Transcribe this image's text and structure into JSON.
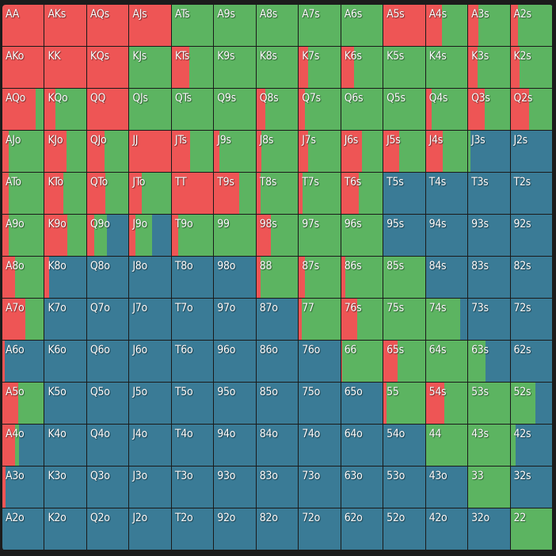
{
  "colors": {
    "raise": "#ee5555",
    "call": "#5cb461",
    "fold": "#3a7b96"
  },
  "grid": {
    "rows": [
      [
        {
          "hand": "AA",
          "raise": 100,
          "call": 0,
          "fold": 0
        },
        {
          "hand": "AKs",
          "raise": 100,
          "call": 0,
          "fold": 0
        },
        {
          "hand": "AQs",
          "raise": 100,
          "call": 0,
          "fold": 0
        },
        {
          "hand": "AJs",
          "raise": 100,
          "call": 0,
          "fold": 0
        },
        {
          "hand": "ATs",
          "raise": 0,
          "call": 100,
          "fold": 0
        },
        {
          "hand": "A9s",
          "raise": 0,
          "call": 100,
          "fold": 0
        },
        {
          "hand": "A8s",
          "raise": 0,
          "call": 100,
          "fold": 0
        },
        {
          "hand": "A7s",
          "raise": 0,
          "call": 100,
          "fold": 0
        },
        {
          "hand": "A6s",
          "raise": 0,
          "call": 100,
          "fold": 0
        },
        {
          "hand": "A5s",
          "raise": 100,
          "call": 0,
          "fold": 0
        },
        {
          "hand": "A4s",
          "raise": 38,
          "call": 62,
          "fold": 0
        },
        {
          "hand": "A3s",
          "raise": 25,
          "call": 75,
          "fold": 0
        },
        {
          "hand": "A2s",
          "raise": 18,
          "call": 82,
          "fold": 0
        }
      ],
      [
        {
          "hand": "AKo",
          "raise": 100,
          "call": 0,
          "fold": 0
        },
        {
          "hand": "KK",
          "raise": 100,
          "call": 0,
          "fold": 0
        },
        {
          "hand": "KQs",
          "raise": 100,
          "call": 0,
          "fold": 0
        },
        {
          "hand": "KJs",
          "raise": 0,
          "call": 100,
          "fold": 0
        },
        {
          "hand": "KTs",
          "raise": 42,
          "call": 58,
          "fold": 0
        },
        {
          "hand": "K9s",
          "raise": 0,
          "call": 100,
          "fold": 0
        },
        {
          "hand": "K8s",
          "raise": 0,
          "call": 100,
          "fold": 0
        },
        {
          "hand": "K7s",
          "raise": 22,
          "call": 78,
          "fold": 0
        },
        {
          "hand": "K6s",
          "raise": 32,
          "call": 68,
          "fold": 0
        },
        {
          "hand": "K5s",
          "raise": 0,
          "call": 100,
          "fold": 0
        },
        {
          "hand": "K4s",
          "raise": 0,
          "call": 100,
          "fold": 0
        },
        {
          "hand": "K3s",
          "raise": 22,
          "call": 78,
          "fold": 0
        },
        {
          "hand": "K2s",
          "raise": 22,
          "call": 78,
          "fold": 0
        }
      ],
      [
        {
          "hand": "AQo",
          "raise": 80,
          "call": 20,
          "fold": 0
        },
        {
          "hand": "KQo",
          "raise": 25,
          "call": 75,
          "fold": 0
        },
        {
          "hand": "QQ",
          "raise": 100,
          "call": 0,
          "fold": 0
        },
        {
          "hand": "QJs",
          "raise": 0,
          "call": 100,
          "fold": 0
        },
        {
          "hand": "QTs",
          "raise": 0,
          "call": 100,
          "fold": 0
        },
        {
          "hand": "Q9s",
          "raise": 0,
          "call": 100,
          "fold": 0
        },
        {
          "hand": "Q8s",
          "raise": 22,
          "call": 78,
          "fold": 0
        },
        {
          "hand": "Q7s",
          "raise": 15,
          "call": 85,
          "fold": 0
        },
        {
          "hand": "Q6s",
          "raise": 0,
          "call": 100,
          "fold": 0
        },
        {
          "hand": "Q5s",
          "raise": 0,
          "call": 100,
          "fold": 0
        },
        {
          "hand": "Q4s",
          "raise": 15,
          "call": 85,
          "fold": 0
        },
        {
          "hand": "Q3s",
          "raise": 40,
          "call": 60,
          "fold": 0
        },
        {
          "hand": "Q2s",
          "raise": 45,
          "call": 55,
          "fold": 0
        }
      ],
      [
        {
          "hand": "AJo",
          "raise": 15,
          "call": 85,
          "fold": 0
        },
        {
          "hand": "KJo",
          "raise": 52,
          "call": 48,
          "fold": 0
        },
        {
          "hand": "QJo",
          "raise": 42,
          "call": 58,
          "fold": 0
        },
        {
          "hand": "JJ",
          "raise": 100,
          "call": 0,
          "fold": 0
        },
        {
          "hand": "JTs",
          "raise": 44,
          "call": 56,
          "fold": 0
        },
        {
          "hand": "J9s",
          "raise": 12,
          "call": 88,
          "fold": 0
        },
        {
          "hand": "J8s",
          "raise": 12,
          "call": 88,
          "fold": 0
        },
        {
          "hand": "J7s",
          "raise": 22,
          "call": 78,
          "fold": 0
        },
        {
          "hand": "J6s",
          "raise": 50,
          "call": 50,
          "fold": 0
        },
        {
          "hand": "J5s",
          "raise": 38,
          "call": 62,
          "fold": 0
        },
        {
          "hand": "J4s",
          "raise": 40,
          "call": 60,
          "fold": 0
        },
        {
          "hand": "J3s",
          "raise": 0,
          "call": 5,
          "fold": 95
        },
        {
          "hand": "J2s",
          "raise": 0,
          "call": 0,
          "fold": 100
        }
      ],
      [
        {
          "hand": "ATo",
          "raise": 15,
          "call": 85,
          "fold": 0
        },
        {
          "hand": "KTo",
          "raise": 44,
          "call": 56,
          "fold": 0
        },
        {
          "hand": "QTo",
          "raise": 44,
          "call": 56,
          "fold": 0
        },
        {
          "hand": "JTo",
          "raise": 30,
          "call": 70,
          "fold": 0
        },
        {
          "hand": "TT",
          "raise": 100,
          "call": 0,
          "fold": 0
        },
        {
          "hand": "T9s",
          "raise": 60,
          "call": 40,
          "fold": 0
        },
        {
          "hand": "T8s",
          "raise": 10,
          "call": 90,
          "fold": 0
        },
        {
          "hand": "T7s",
          "raise": 10,
          "call": 90,
          "fold": 0
        },
        {
          "hand": "T6s",
          "raise": 42,
          "call": 58,
          "fold": 0
        },
        {
          "hand": "T5s",
          "raise": 0,
          "call": 0,
          "fold": 100
        },
        {
          "hand": "T4s",
          "raise": 0,
          "call": 0,
          "fold": 100
        },
        {
          "hand": "T3s",
          "raise": 0,
          "call": 0,
          "fold": 100
        },
        {
          "hand": "T2s",
          "raise": 0,
          "call": 0,
          "fold": 100
        }
      ],
      [
        {
          "hand": "A9o",
          "raise": 15,
          "call": 85,
          "fold": 0
        },
        {
          "hand": "K9o",
          "raise": 55,
          "call": 45,
          "fold": 0
        },
        {
          "hand": "Q9o",
          "raise": 18,
          "call": 30,
          "fold": 52
        },
        {
          "hand": "J9o",
          "raise": 15,
          "call": 40,
          "fold": 45
        },
        {
          "hand": "T9o",
          "raise": 15,
          "call": 85,
          "fold": 0
        },
        {
          "hand": "99",
          "raise": 0,
          "call": 100,
          "fold": 0
        },
        {
          "hand": "98s",
          "raise": 35,
          "call": 65,
          "fold": 0
        },
        {
          "hand": "97s",
          "raise": 0,
          "call": 100,
          "fold": 0
        },
        {
          "hand": "96s",
          "raise": 0,
          "call": 100,
          "fold": 0
        },
        {
          "hand": "95s",
          "raise": 0,
          "call": 0,
          "fold": 100
        },
        {
          "hand": "94s",
          "raise": 0,
          "call": 0,
          "fold": 100
        },
        {
          "hand": "93s",
          "raise": 0,
          "call": 0,
          "fold": 100
        },
        {
          "hand": "92s",
          "raise": 0,
          "call": 0,
          "fold": 100
        }
      ],
      [
        {
          "hand": "A8o",
          "raise": 30,
          "call": 70,
          "fold": 0
        },
        {
          "hand": "K8o",
          "raise": 10,
          "call": 0,
          "fold": 90
        },
        {
          "hand": "Q8o",
          "raise": 0,
          "call": 0,
          "fold": 100
        },
        {
          "hand": "J8o",
          "raise": 0,
          "call": 0,
          "fold": 100
        },
        {
          "hand": "T8o",
          "raise": 0,
          "call": 0,
          "fold": 100
        },
        {
          "hand": "98o",
          "raise": 0,
          "call": 0,
          "fold": 100
        },
        {
          "hand": "88",
          "raise": 10,
          "call": 90,
          "fold": 0
        },
        {
          "hand": "87s",
          "raise": 15,
          "call": 85,
          "fold": 0
        },
        {
          "hand": "86s",
          "raise": 10,
          "call": 90,
          "fold": 0
        },
        {
          "hand": "85s",
          "raise": 0,
          "call": 100,
          "fold": 0
        },
        {
          "hand": "84s",
          "raise": 0,
          "call": 0,
          "fold": 100
        },
        {
          "hand": "83s",
          "raise": 0,
          "call": 0,
          "fold": 100
        },
        {
          "hand": "82s",
          "raise": 0,
          "call": 0,
          "fold": 100
        }
      ],
      [
        {
          "hand": "A7o",
          "raise": 55,
          "call": 45,
          "fold": 0
        },
        {
          "hand": "K7o",
          "raise": 0,
          "call": 0,
          "fold": 100
        },
        {
          "hand": "Q7o",
          "raise": 0,
          "call": 0,
          "fold": 100
        },
        {
          "hand": "J7o",
          "raise": 0,
          "call": 0,
          "fold": 100
        },
        {
          "hand": "T7o",
          "raise": 0,
          "call": 0,
          "fold": 100
        },
        {
          "hand": "97o",
          "raise": 0,
          "call": 0,
          "fold": 100
        },
        {
          "hand": "87o",
          "raise": 0,
          "call": 0,
          "fold": 100
        },
        {
          "hand": "77",
          "raise": 8,
          "call": 92,
          "fold": 0
        },
        {
          "hand": "76s",
          "raise": 38,
          "call": 62,
          "fold": 0
        },
        {
          "hand": "75s",
          "raise": 0,
          "call": 100,
          "fold": 0
        },
        {
          "hand": "74s",
          "raise": 0,
          "call": 82,
          "fold": 18
        },
        {
          "hand": "73s",
          "raise": 0,
          "call": 0,
          "fold": 100
        },
        {
          "hand": "72s",
          "raise": 0,
          "call": 0,
          "fold": 100
        }
      ],
      [
        {
          "hand": "A6o",
          "raise": 5,
          "call": 0,
          "fold": 95
        },
        {
          "hand": "K6o",
          "raise": 0,
          "call": 0,
          "fold": 100
        },
        {
          "hand": "Q6o",
          "raise": 0,
          "call": 0,
          "fold": 100
        },
        {
          "hand": "J6o",
          "raise": 0,
          "call": 0,
          "fold": 100
        },
        {
          "hand": "T6o",
          "raise": 0,
          "call": 0,
          "fold": 100
        },
        {
          "hand": "96o",
          "raise": 0,
          "call": 0,
          "fold": 100
        },
        {
          "hand": "86o",
          "raise": 0,
          "call": 0,
          "fold": 100
        },
        {
          "hand": "76o",
          "raise": 0,
          "call": 0,
          "fold": 100
        },
        {
          "hand": "66",
          "raise": 3,
          "call": 97,
          "fold": 0
        },
        {
          "hand": "65s",
          "raise": 35,
          "call": 65,
          "fold": 0
        },
        {
          "hand": "64s",
          "raise": 0,
          "call": 100,
          "fold": 0
        },
        {
          "hand": "63s",
          "raise": 0,
          "call": 42,
          "fold": 58
        },
        {
          "hand": "62s",
          "raise": 0,
          "call": 0,
          "fold": 100
        }
      ],
      [
        {
          "hand": "A5o",
          "raise": 38,
          "call": 62,
          "fold": 0
        },
        {
          "hand": "K5o",
          "raise": 0,
          "call": 0,
          "fold": 100
        },
        {
          "hand": "Q5o",
          "raise": 0,
          "call": 0,
          "fold": 100
        },
        {
          "hand": "J5o",
          "raise": 0,
          "call": 0,
          "fold": 100
        },
        {
          "hand": "T5o",
          "raise": 0,
          "call": 0,
          "fold": 100
        },
        {
          "hand": "95o",
          "raise": 0,
          "call": 0,
          "fold": 100
        },
        {
          "hand": "85o",
          "raise": 0,
          "call": 0,
          "fold": 100
        },
        {
          "hand": "75o",
          "raise": 0,
          "call": 0,
          "fold": 100
        },
        {
          "hand": "65o",
          "raise": 0,
          "call": 0,
          "fold": 100
        },
        {
          "hand": "55",
          "raise": 8,
          "call": 92,
          "fold": 0
        },
        {
          "hand": "54s",
          "raise": 44,
          "call": 56,
          "fold": 0
        },
        {
          "hand": "53s",
          "raise": 0,
          "call": 100,
          "fold": 0
        },
        {
          "hand": "52s",
          "raise": 0,
          "call": 60,
          "fold": 40
        }
      ],
      [
        {
          "hand": "A4o",
          "raise": 30,
          "call": 10,
          "fold": 60
        },
        {
          "hand": "K4o",
          "raise": 0,
          "call": 0,
          "fold": 100
        },
        {
          "hand": "Q4o",
          "raise": 0,
          "call": 0,
          "fold": 100
        },
        {
          "hand": "J4o",
          "raise": 0,
          "call": 0,
          "fold": 100
        },
        {
          "hand": "T4o",
          "raise": 0,
          "call": 0,
          "fold": 100
        },
        {
          "hand": "94o",
          "raise": 0,
          "call": 0,
          "fold": 100
        },
        {
          "hand": "84o",
          "raise": 0,
          "call": 0,
          "fold": 100
        },
        {
          "hand": "74o",
          "raise": 0,
          "call": 0,
          "fold": 100
        },
        {
          "hand": "64o",
          "raise": 0,
          "call": 0,
          "fold": 100
        },
        {
          "hand": "54o",
          "raise": 0,
          "call": 0,
          "fold": 100
        },
        {
          "hand": "44",
          "raise": 0,
          "call": 100,
          "fold": 0
        },
        {
          "hand": "43s",
          "raise": 0,
          "call": 100,
          "fold": 0
        },
        {
          "hand": "42s",
          "raise": 0,
          "call": 12,
          "fold": 88
        }
      ],
      [
        {
          "hand": "A3o",
          "raise": 8,
          "call": 0,
          "fold": 92
        },
        {
          "hand": "K3o",
          "raise": 0,
          "call": 0,
          "fold": 100
        },
        {
          "hand": "Q3o",
          "raise": 0,
          "call": 0,
          "fold": 100
        },
        {
          "hand": "J3o",
          "raise": 0,
          "call": 0,
          "fold": 100
        },
        {
          "hand": "T3o",
          "raise": 0,
          "call": 0,
          "fold": 100
        },
        {
          "hand": "93o",
          "raise": 0,
          "call": 0,
          "fold": 100
        },
        {
          "hand": "83o",
          "raise": 0,
          "call": 0,
          "fold": 100
        },
        {
          "hand": "73o",
          "raise": 0,
          "call": 0,
          "fold": 100
        },
        {
          "hand": "63o",
          "raise": 0,
          "call": 0,
          "fold": 100
        },
        {
          "hand": "53o",
          "raise": 0,
          "call": 0,
          "fold": 100
        },
        {
          "hand": "43o",
          "raise": 0,
          "call": 0,
          "fold": 100
        },
        {
          "hand": "33",
          "raise": 0,
          "call": 100,
          "fold": 0
        },
        {
          "hand": "32s",
          "raise": 0,
          "call": 0,
          "fold": 100
        }
      ],
      [
        {
          "hand": "A2o",
          "raise": 0,
          "call": 0,
          "fold": 100
        },
        {
          "hand": "K2o",
          "raise": 0,
          "call": 0,
          "fold": 100
        },
        {
          "hand": "Q2o",
          "raise": 0,
          "call": 0,
          "fold": 100
        },
        {
          "hand": "J2o",
          "raise": 0,
          "call": 0,
          "fold": 100
        },
        {
          "hand": "T2o",
          "raise": 0,
          "call": 0,
          "fold": 100
        },
        {
          "hand": "92o",
          "raise": 0,
          "call": 0,
          "fold": 100
        },
        {
          "hand": "82o",
          "raise": 0,
          "call": 0,
          "fold": 100
        },
        {
          "hand": "72o",
          "raise": 0,
          "call": 0,
          "fold": 100
        },
        {
          "hand": "62o",
          "raise": 0,
          "call": 0,
          "fold": 100
        },
        {
          "hand": "52o",
          "raise": 0,
          "call": 0,
          "fold": 100
        },
        {
          "hand": "42o",
          "raise": 0,
          "call": 0,
          "fold": 100
        },
        {
          "hand": "32o",
          "raise": 0,
          "call": 0,
          "fold": 100
        },
        {
          "hand": "22",
          "raise": 0,
          "call": 100,
          "fold": 0
        }
      ]
    ]
  }
}
